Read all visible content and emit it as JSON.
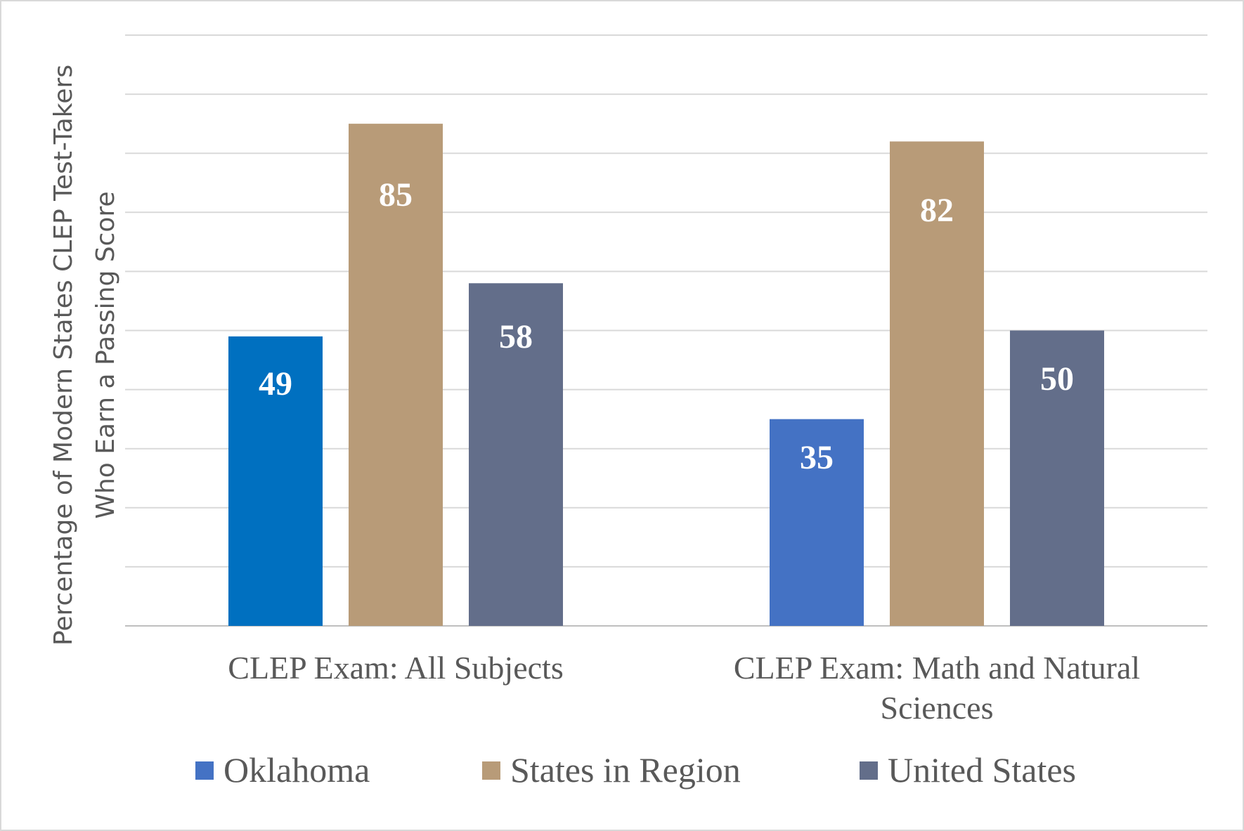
{
  "chart_data": {
    "type": "bar",
    "categories": [
      [
        "CLEP Exam: All Subjects"
      ],
      [
        "CLEP Exam: Math and Natural",
        "Sciences"
      ]
    ],
    "series": [
      {
        "name": "Oklahoma",
        "values": [
          49,
          35
        ],
        "colors": [
          "#0070c0",
          "#4472c4"
        ]
      },
      {
        "name": "States in Region",
        "values": [
          85,
          82
        ],
        "colors": [
          "#b89b78",
          "#b89b78"
        ]
      },
      {
        "name": "United States",
        "values": [
          58,
          50
        ],
        "colors": [
          "#636e8a",
          "#636e8a"
        ]
      }
    ],
    "ylabel": [
      "Percentage of Modern States CLEP Test-Takers",
      "Who Earn a Passing Score"
    ],
    "ylim": [
      0,
      100
    ],
    "grid": true,
    "legend_position": "bottom",
    "legend_colors": [
      "#4472c4",
      "#b89b78",
      "#636e8a"
    ]
  }
}
